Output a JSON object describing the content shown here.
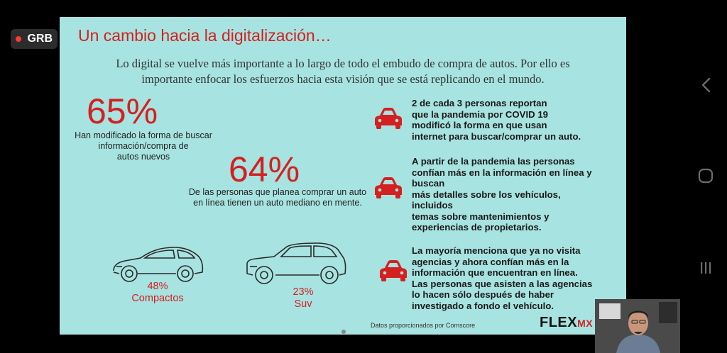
{
  "recording": {
    "label": "GRB"
  },
  "slide": {
    "title": "Un cambio hacia la digitalización…",
    "subtitle_line1": "Lo digital se vuelve más importante a lo largo de todo el embudo de compra de autos. Por ello es",
    "subtitle_line2": "importante enfocar los esfuerzos hacia esta visión que se está replicando en el mundo.",
    "stat1": {
      "value": "65%",
      "desc1": "Han modificado la forma de buscar",
      "desc2": "información/compra de",
      "desc3": "autos nuevos"
    },
    "stat2": {
      "value": "64%",
      "desc1": "De las personas que planea comprar un auto",
      "desc2": "en línea tienen un auto mediano en mente."
    },
    "cars": {
      "compact_pct": "48%",
      "compact_label": "Compactos",
      "suv_pct": "23%",
      "suv_label": "Suv"
    },
    "facts": [
      "2  de cada 3 personas reportan\nque la pandemia por COVID 19\nmodificó la forma en que usan\ninternet para buscar/comprar un auto.",
      "A partir de la pandemia las personas\nconfían más en la información en línea y\nbuscan\nmás detalles sobre los vehículos,\nincluidos\ntemas sobre mantenimientos y\nexperiencias de propietarios.",
      "La mayoría menciona que ya no visita\nagencias y ahora confían más en la\ninformación que encuentran en línea.\nLas personas que asisten a las agencias\nlo hacen sólo después de haber\ninvestigado a fondo el vehículo."
    ],
    "source": "Datos proporcionados por Comscore",
    "brand": "FLEX",
    "brand_suffix": "MX"
  },
  "icons": {
    "car": "car-icon",
    "back": "chevron-left-icon",
    "home": "circle-home-icon",
    "recents": "recents-icon"
  },
  "colors": {
    "slide_bg": "#a7e3e0",
    "accent_red": "#d42020",
    "text_dark": "#1a1a1a"
  }
}
